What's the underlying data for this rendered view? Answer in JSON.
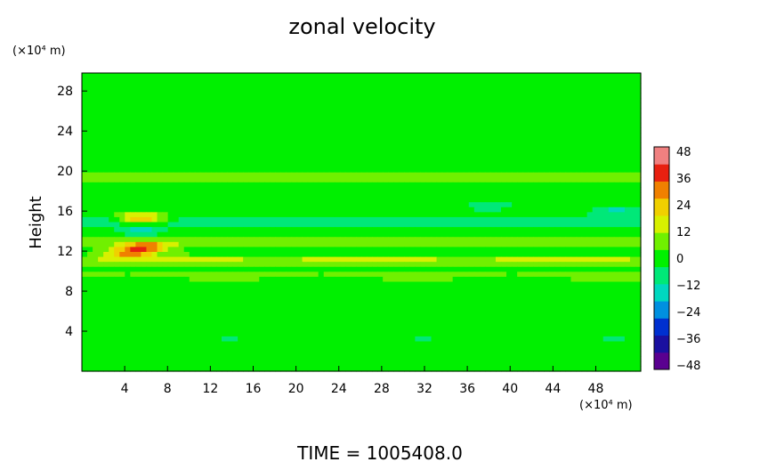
{
  "chart_data": {
    "type": "heatmap",
    "title": "zonal velocity",
    "ylabel": "Height",
    "yunit": "(×10⁴ m)",
    "xunit": "(×10⁴ m)",
    "footer": "TIME  =  1005408.0",
    "xlim": [
      0,
      52.2
    ],
    "ylim": [
      0,
      29.8
    ],
    "xticks": [
      "4",
      "8",
      "12",
      "16",
      "20",
      "24",
      "28",
      "32",
      "36",
      "40",
      "44",
      "48"
    ],
    "yticks": [
      "4",
      "8",
      "12",
      "16",
      "20",
      "24",
      "28"
    ],
    "colorbar": {
      "range": [
        -50,
        50
      ],
      "labels": [
        "48",
        "36",
        "24",
        "12",
        "0",
        "−12",
        "−24",
        "−36",
        "−48"
      ],
      "label_values": [
        48,
        36,
        24,
        12,
        0,
        -12,
        -24,
        -36,
        -48
      ],
      "colors": [
        "#5a0090",
        "#1a10a0",
        "#0030d0",
        "#0090e0",
        "#00d8c0",
        "#00e878",
        "#00f000",
        "#70f000",
        "#d8f000",
        "#f0d000",
        "#f08000",
        "#e82010",
        "#f08080"
      ]
    },
    "field_description": {
      "background_value": 0,
      "bands": [
        {
          "height": 19.5,
          "value": 10
        },
        {
          "height": 17.5,
          "value": -3
        },
        {
          "height": 15,
          "value": -8
        },
        {
          "height": 12.8,
          "value": 8
        },
        {
          "height": 11,
          "value": 14
        },
        {
          "height": 9.5,
          "value": 5
        },
        {
          "height": 6,
          "value": 3
        },
        {
          "height": 3,
          "value": -4
        }
      ],
      "features": [
        {
          "x": 4.5,
          "y": 11.8,
          "value": 32
        },
        {
          "x": 6,
          "y": 12.4,
          "value": 30
        },
        {
          "x": 5.5,
          "y": 15.3,
          "value": 34
        },
        {
          "x": 5.5,
          "y": 14.0,
          "value": -14
        },
        {
          "x": 50,
          "y": 16.0,
          "value": -14
        },
        {
          "x": 38,
          "y": 16.5,
          "value": -10
        }
      ]
    }
  }
}
